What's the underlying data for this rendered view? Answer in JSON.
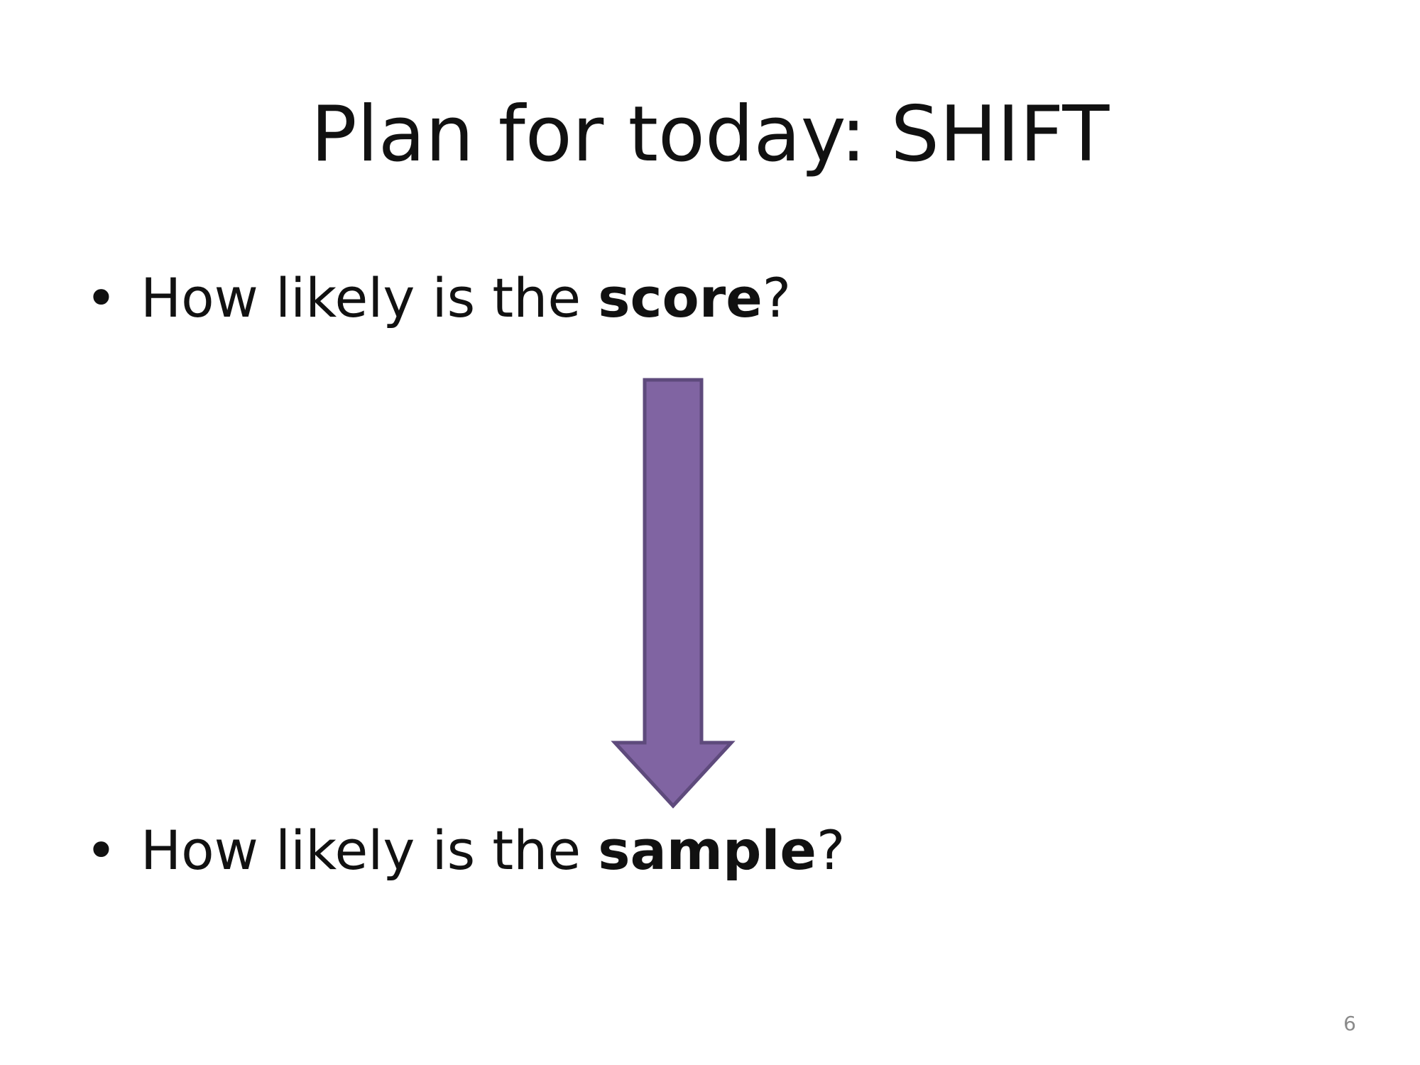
{
  "slide": {
    "title": "Plan for today: SHIFT",
    "bullets": [
      {
        "marker": "•",
        "before": "How likely is the ",
        "bold": "score",
        "after": "?"
      },
      {
        "marker": "•",
        "before": "How likely is the ",
        "bold": "sample",
        "after": "?"
      }
    ],
    "arrow": {
      "icon": "down-arrow-icon",
      "fill": "#8064A2",
      "stroke": "#5E4A7C"
    },
    "page_number": "6"
  }
}
